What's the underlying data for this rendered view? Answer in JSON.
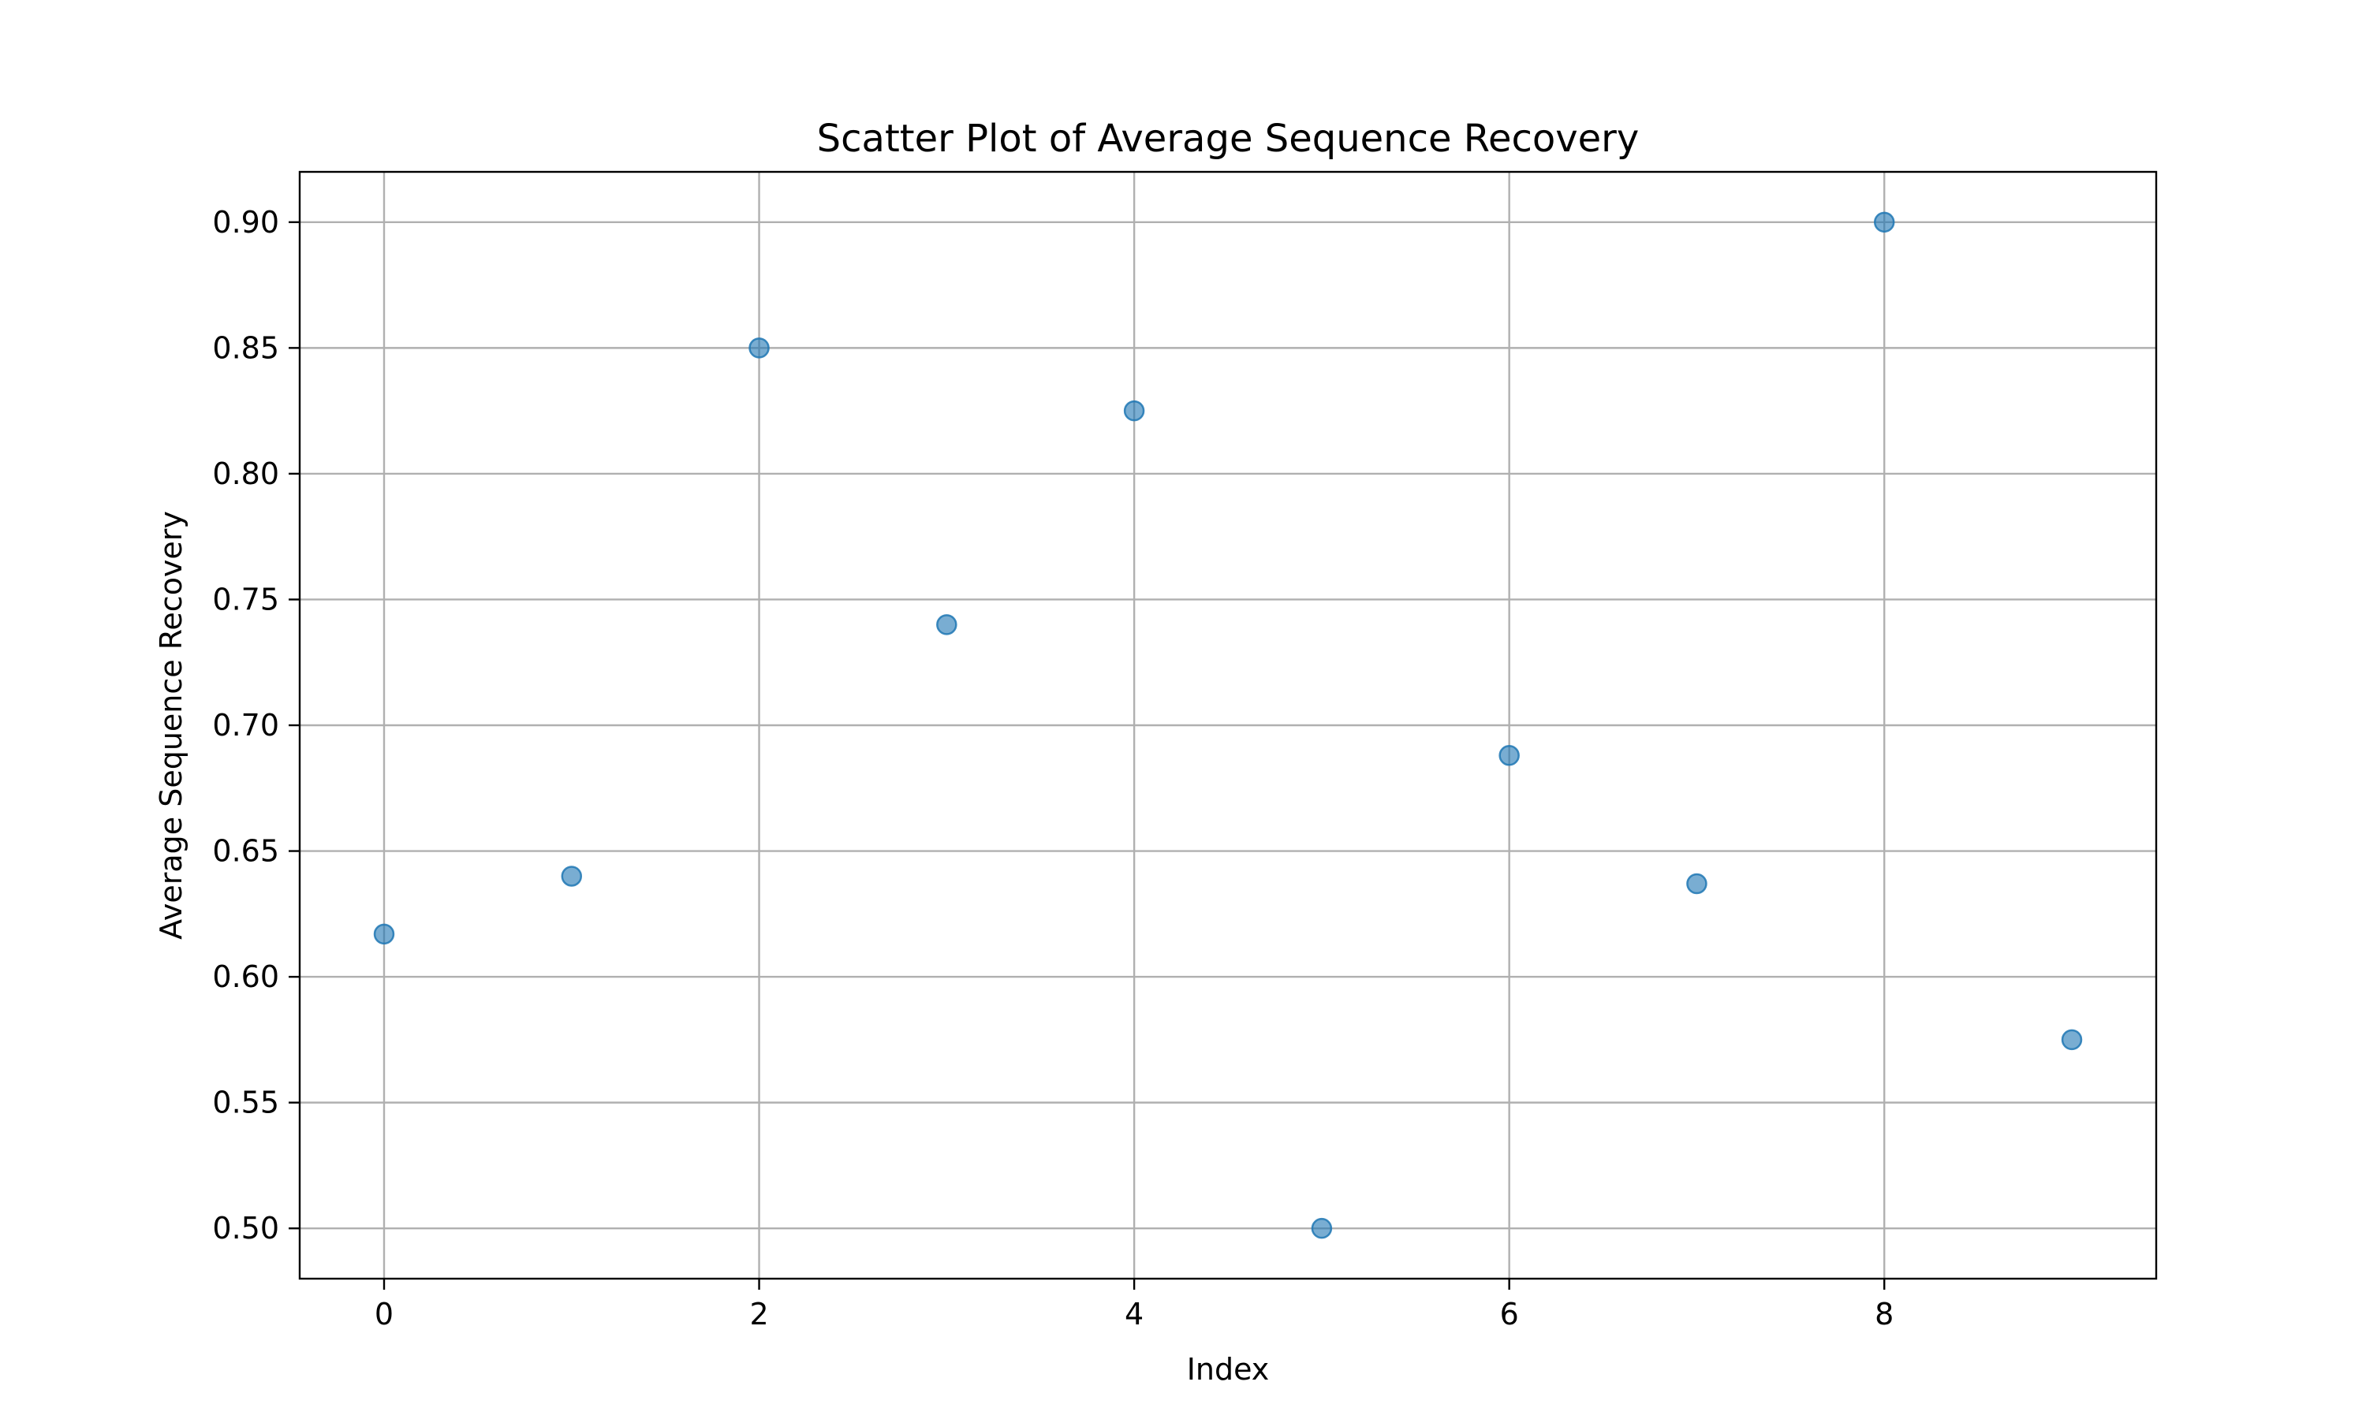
{
  "chart_data": {
    "type": "scatter",
    "title": "Scatter Plot of Average Sequence Recovery",
    "xlabel": "Index",
    "ylabel": "Average Sequence Recovery",
    "x": [
      0,
      1,
      2,
      3,
      4,
      5,
      6,
      7,
      8,
      9
    ],
    "y": [
      0.617,
      0.64,
      0.85,
      0.74,
      0.825,
      0.5,
      0.688,
      0.637,
      0.9,
      0.575
    ],
    "xlim": [
      -0.45,
      9.45
    ],
    "ylim": [
      0.48,
      0.92
    ],
    "xticks": [
      0,
      2,
      4,
      6,
      8
    ],
    "xtick_labels": [
      "0",
      "2",
      "4",
      "6",
      "8"
    ],
    "yticks": [
      0.5,
      0.55,
      0.6,
      0.65,
      0.7,
      0.75,
      0.8,
      0.85,
      0.9
    ],
    "ytick_labels": [
      "0.50",
      "0.55",
      "0.60",
      "0.65",
      "0.70",
      "0.75",
      "0.80",
      "0.85",
      "0.90"
    ],
    "grid": true,
    "legend": false,
    "marker_color": "#1f77b4",
    "marker_alpha": 0.6
  }
}
